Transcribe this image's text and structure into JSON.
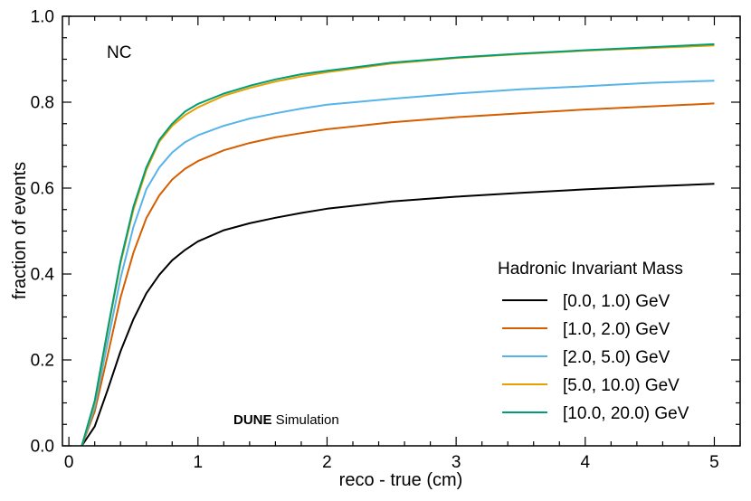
{
  "chart_data": {
    "type": "line",
    "title": "",
    "xlabel": "reco - true (cm)",
    "ylabel": "fraction of events",
    "xlim": [
      -0.05,
      5.2
    ],
    "ylim": [
      0.0,
      1.0
    ],
    "xticks": [
      0,
      1,
      2,
      3,
      4,
      5
    ],
    "yticks": [
      0.0,
      0.2,
      0.4,
      0.6,
      0.8,
      1.0
    ],
    "xtick_labels": [
      "0",
      "1",
      "2",
      "3",
      "4",
      "5"
    ],
    "ytick_labels": [
      "0.0",
      "0.2",
      "0.4",
      "0.6",
      "0.8",
      "1.0"
    ],
    "annotation": "NC",
    "watermark": {
      "bold": "DUNE",
      "regular": " Simulation"
    },
    "legend_title": "Hadronic Invariant Mass",
    "legend_position": "lower-right",
    "grid": false,
    "x": [
      0.1,
      0.2,
      0.3,
      0.4,
      0.5,
      0.6,
      0.7,
      0.8,
      0.9,
      1.0,
      1.2,
      1.4,
      1.6,
      1.8,
      2.0,
      2.5,
      3.0,
      3.5,
      4.0,
      4.5,
      5.0
    ],
    "series": [
      {
        "name": "[0.0, 1.0) GeV",
        "color": "#000000",
        "values": [
          0.0,
          0.045,
          0.13,
          0.22,
          0.295,
          0.355,
          0.398,
          0.432,
          0.456,
          0.476,
          0.502,
          0.518,
          0.531,
          0.542,
          0.552,
          0.569,
          0.58,
          0.589,
          0.597,
          0.604,
          0.61
        ]
      },
      {
        "name": "[1.0, 2.0) GeV",
        "color": "#d55e00",
        "values": [
          0.0,
          0.08,
          0.21,
          0.345,
          0.45,
          0.53,
          0.583,
          0.62,
          0.645,
          0.663,
          0.688,
          0.705,
          0.718,
          0.728,
          0.737,
          0.753,
          0.765,
          0.774,
          0.783,
          0.79,
          0.797
        ]
      },
      {
        "name": "[2.0, 5.0) GeV",
        "color": "#56b4e9",
        "values": [
          0.0,
          0.09,
          0.24,
          0.39,
          0.51,
          0.597,
          0.648,
          0.683,
          0.707,
          0.723,
          0.745,
          0.762,
          0.774,
          0.785,
          0.794,
          0.808,
          0.82,
          0.83,
          0.837,
          0.845,
          0.85
        ]
      },
      {
        "name": "[5.0, 10.0) GeV",
        "color": "#e69f00",
        "values": [
          0.0,
          0.1,
          0.265,
          0.425,
          0.55,
          0.642,
          0.708,
          0.745,
          0.77,
          0.788,
          0.815,
          0.833,
          0.848,
          0.86,
          0.87,
          0.89,
          0.903,
          0.912,
          0.92,
          0.926,
          0.932
        ]
      },
      {
        "name": "[10.0, 20.0) GeV",
        "color": "#009e73",
        "values": [
          0.0,
          0.105,
          0.27,
          0.43,
          0.557,
          0.648,
          0.712,
          0.75,
          0.778,
          0.796,
          0.82,
          0.838,
          0.853,
          0.865,
          0.873,
          0.892,
          0.904,
          0.913,
          0.921,
          0.928,
          0.935
        ]
      }
    ]
  }
}
